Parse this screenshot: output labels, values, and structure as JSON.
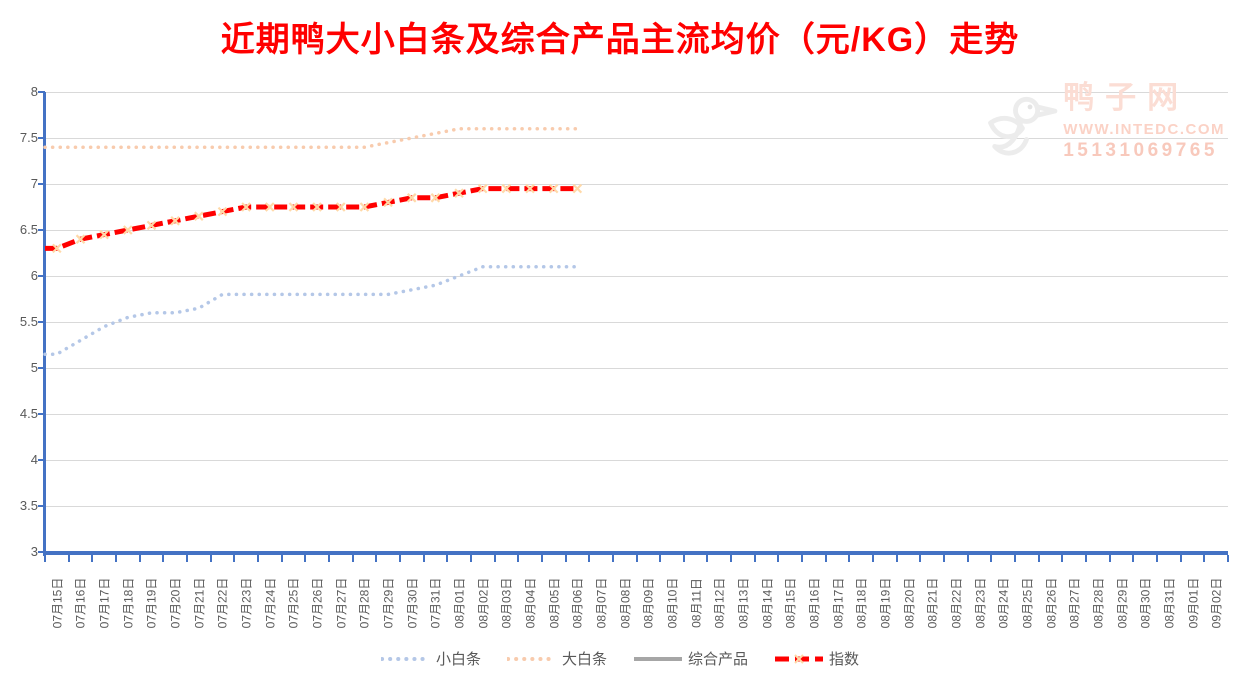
{
  "title": "近期鸭大小白条及综合产品主流均价（元/KG）走势",
  "watermark": {
    "site_name": "鸭子网",
    "url": "WWW.INTEDC.COM",
    "phone": "15131069765"
  },
  "chart_data": {
    "type": "line",
    "title": "近期鸭大小白条及综合产品主流均价（元/KG）走势",
    "xlabel": "",
    "ylabel": "",
    "ylim": [
      3,
      8
    ],
    "ytick_step": 0.5,
    "grid": true,
    "legend_position": "bottom",
    "x_labels_rotated": true,
    "axis_color": "#4472c4",
    "grid_color": "#d9d9d9",
    "label_color": "#595959",
    "title_color": "#ff0000",
    "categories": [
      "07月15日",
      "07月16日",
      "07月17日",
      "07月18日",
      "07月19日",
      "07月20日",
      "07月21日",
      "07月22日",
      "07月23日",
      "07月24日",
      "07月25日",
      "07月26日",
      "07月27日",
      "07月28日",
      "07月29日",
      "07月30日",
      "07月31日",
      "08月01日",
      "08月02日",
      "08月03日",
      "08月04日",
      "08月05日",
      "08月06日",
      "08月07日",
      "08月08日",
      "08月09日",
      "08月10日",
      "08月11日",
      "08月12日",
      "08月13日",
      "08月14日",
      "08月15日",
      "08月16日",
      "08月17日",
      "08月18日",
      "08月19日",
      "08月20日",
      "08月21日",
      "08月22日",
      "08月23日",
      "08月24日",
      "08月25日",
      "08月26日",
      "08月27日",
      "08月28日",
      "08月29日",
      "08月30日",
      "08月31日",
      "09月01日",
      "09月02日"
    ],
    "series": [
      {
        "name": "小白条",
        "color": "#b4c7e7",
        "style": "dotted",
        "values": [
          5.15,
          5.3,
          5.45,
          5.55,
          5.6,
          5.6,
          5.65,
          5.8,
          5.8,
          5.8,
          5.8,
          5.8,
          5.8,
          5.8,
          5.8,
          5.85,
          5.9,
          6.0,
          6.1,
          6.1,
          6.1,
          6.1,
          6.1
        ]
      },
      {
        "name": "大白条",
        "color": "#f8cbad",
        "style": "dotted",
        "values": [
          7.4,
          7.4,
          7.4,
          7.4,
          7.4,
          7.4,
          7.4,
          7.4,
          7.4,
          7.4,
          7.4,
          7.4,
          7.4,
          7.4,
          7.45,
          7.5,
          7.55,
          7.6,
          7.6,
          7.6,
          7.6,
          7.6,
          7.6
        ]
      },
      {
        "name": "综合产品",
        "color": "#a6a6a6",
        "style": "solid",
        "values": []
      },
      {
        "name": "指数",
        "color": "#ff0000",
        "marker_color": "#ffd9a8",
        "style": "dashed-x",
        "values": [
          6.3,
          6.4,
          6.45,
          6.5,
          6.55,
          6.6,
          6.65,
          6.7,
          6.75,
          6.75,
          6.75,
          6.75,
          6.75,
          6.75,
          6.8,
          6.85,
          6.85,
          6.9,
          6.95,
          6.95,
          6.95,
          6.95,
          6.95
        ]
      }
    ]
  }
}
